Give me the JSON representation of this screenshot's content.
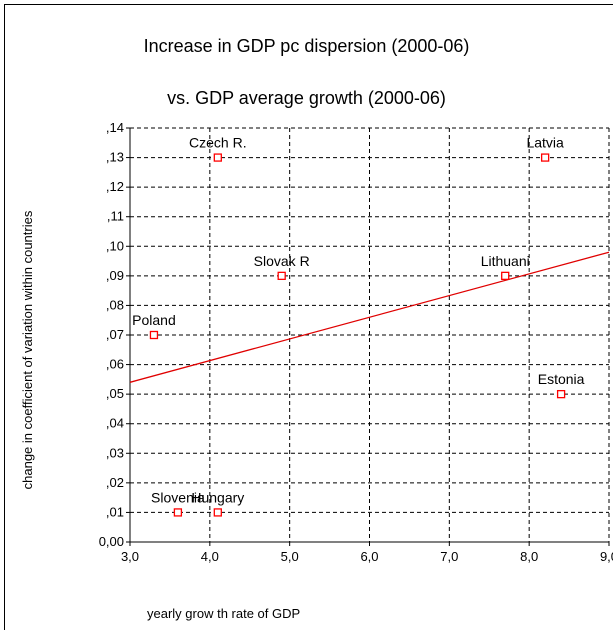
{
  "chart_data": {
    "type": "scatter",
    "title": "Increase in GDP pc dispersion (2000-06)",
    "subtitle": "vs. GDP average growth (2000-06)",
    "xlabel": "yearly grow th rate of GDP",
    "ylabel": "change in coefficient of variation within countries",
    "xlim": [
      3.0,
      9.0
    ],
    "ylim": [
      0.0,
      0.14
    ],
    "x_ticks": [
      3.0,
      4.0,
      5.0,
      6.0,
      7.0,
      8.0,
      9.0
    ],
    "x_tick_labels": [
      "3,0",
      "4,0",
      "5,0",
      "6,0",
      "7,0",
      "8,0",
      "9,0"
    ],
    "y_ticks": [
      0.0,
      0.01,
      0.02,
      0.03,
      0.04,
      0.05,
      0.06,
      0.07,
      0.08,
      0.09,
      0.1,
      0.11,
      0.12,
      0.13,
      0.14
    ],
    "y_tick_labels": [
      "0,00",
      ",01",
      ",02",
      ",03",
      ",04",
      ",05",
      ",06",
      ",07",
      ",08",
      ",09",
      ",10",
      ",11",
      ",12",
      ",13",
      ",14"
    ],
    "grid": true,
    "marker_color": "#ff0000",
    "line_color": "#e00000",
    "points": [
      {
        "label": "Czech R.",
        "x": 4.1,
        "y": 0.13
      },
      {
        "label": "Latvia",
        "x": 8.2,
        "y": 0.13
      },
      {
        "label": "Slovak R",
        "x": 4.9,
        "y": 0.09
      },
      {
        "label": "Lithuani",
        "x": 7.7,
        "y": 0.09
      },
      {
        "label": "Poland",
        "x": 3.3,
        "y": 0.07
      },
      {
        "label": "Estonia",
        "x": 8.4,
        "y": 0.05
      },
      {
        "label": "Slovenia",
        "x": 3.6,
        "y": 0.01
      },
      {
        "label": "Hungary",
        "x": 4.1,
        "y": 0.01
      }
    ],
    "fit_line": {
      "x": [
        3.0,
        9.0
      ],
      "y": [
        0.054,
        0.098
      ]
    }
  }
}
